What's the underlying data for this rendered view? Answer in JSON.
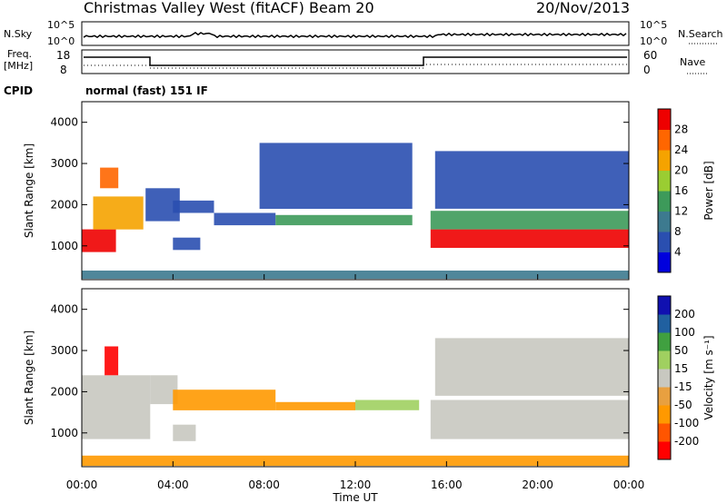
{
  "header": {
    "station": "Christmas Valley West (fitACF)",
    "beam": "Beam 20",
    "date": "20/Nov/2013"
  },
  "panels": {
    "nsky": {
      "left_label": "N.Sky",
      "left_ticks": [
        "10^5",
        "10^0"
      ],
      "right_ticks": [
        "10^5",
        "10^0"
      ],
      "right_label": "N.Search"
    },
    "freq": {
      "left_label_1": "Freq.",
      "left_label_2": "[MHz]",
      "left_ticks": [
        "18",
        "8"
      ],
      "right_ticks": [
        "60",
        "0"
      ],
      "right_label": "Nave"
    },
    "cpid": {
      "label": "CPID",
      "value": "normal (fast) 151 IF"
    }
  },
  "colors": {
    "power_scale": [
      "#0000dd",
      "#2a4fb0",
      "#3d7a8f",
      "#3d9a5a",
      "#9acd32",
      "#f5a300",
      "#ff6600",
      "#ee0000"
    ],
    "velocity_scale": [
      "#ff0000",
      "#ff5500",
      "#ff9900",
      "#e8a040",
      "#c8c8c0",
      "#a0d060",
      "#40a040",
      "#2060a0",
      "#1010b0"
    ]
  },
  "chart_data": [
    {
      "type": "heatmap",
      "name_panel": "power",
      "ylabel": "Slant Range [km]",
      "ylim": [
        180,
        4500
      ],
      "y_ticks": [
        "1000",
        "2000",
        "3000",
        "4000"
      ],
      "xlim": [
        0,
        24
      ],
      "colorbar": {
        "label": "Power [dB]",
        "ticks": [
          "4",
          "8",
          "12",
          "16",
          "20",
          "24",
          "28"
        ],
        "range": [
          0,
          30
        ]
      },
      "regions": [
        {
          "t0": 0.0,
          "t1": 1.5,
          "r0": 850,
          "r1": 1400,
          "value": 28
        },
        {
          "t0": 0.5,
          "t1": 2.7,
          "r0": 1400,
          "r1": 2200,
          "value": 22
        },
        {
          "t0": 0.8,
          "t1": 1.6,
          "r0": 2400,
          "r1": 2900,
          "value": 24
        },
        {
          "t0": 2.8,
          "t1": 4.3,
          "r0": 1600,
          "r1": 2400,
          "value": 6
        },
        {
          "t0": 4.0,
          "t1": 5.8,
          "r0": 1800,
          "r1": 2100,
          "value": 6
        },
        {
          "t0": 4.0,
          "t1": 5.2,
          "r0": 900,
          "r1": 1200,
          "value": 5
        },
        {
          "t0": 5.8,
          "t1": 8.5,
          "r0": 1500,
          "r1": 1800,
          "value": 6
        },
        {
          "t0": 8.5,
          "t1": 14.5,
          "r0": 1500,
          "r1": 1750,
          "value": 14
        },
        {
          "t0": 0.0,
          "t1": 24.0,
          "r0": 200,
          "r1": 400,
          "value": 8
        },
        {
          "t0": 15.3,
          "t1": 24.0,
          "r0": 950,
          "r1": 1400,
          "value": 28
        },
        {
          "t0": 15.3,
          "t1": 24.0,
          "r0": 1400,
          "r1": 1850,
          "value": 12
        },
        {
          "t0": 15.5,
          "t1": 24.0,
          "r0": 1900,
          "r1": 3300,
          "value": 6
        },
        {
          "t0": 7.8,
          "t1": 14.5,
          "r0": 1900,
          "r1": 3500,
          "value": 5
        }
      ]
    },
    {
      "type": "heatmap",
      "name_panel": "velocity",
      "ylabel": "Slant Range [km]",
      "ylim": [
        180,
        4500
      ],
      "y_ticks": [
        "1000",
        "2000",
        "3000",
        "4000"
      ],
      "xlim": [
        0,
        24
      ],
      "x_ticks": [
        "00:00",
        "04:00",
        "08:00",
        "12:00",
        "16:00",
        "20:00",
        "00:00"
      ],
      "xlabel": "Time UT",
      "colorbar": {
        "label": "Velocity [m s⁻¹]",
        "ticks": [
          "-200",
          "-100",
          "-50",
          "-15",
          "15",
          "50",
          "100",
          "200"
        ],
        "range": [
          -250,
          250
        ]
      },
      "regions": [
        {
          "t0": 0.0,
          "t1": 3.0,
          "r0": 850,
          "r1": 2400,
          "value": 0
        },
        {
          "t0": 1.0,
          "t1": 1.6,
          "r0": 2400,
          "r1": 3100,
          "value": -220
        },
        {
          "t0": 3.0,
          "t1": 4.2,
          "r0": 1700,
          "r1": 2400,
          "value": 0
        },
        {
          "t0": 4.0,
          "t1": 8.5,
          "r0": 1550,
          "r1": 2050,
          "value": -70
        },
        {
          "t0": 8.5,
          "t1": 12.0,
          "r0": 1550,
          "r1": 1750,
          "value": -70
        },
        {
          "t0": 12.0,
          "t1": 14.8,
          "r0": 1550,
          "r1": 1800,
          "value": 35
        },
        {
          "t0": 0.0,
          "t1": 24.0,
          "r0": 200,
          "r1": 450,
          "value": -70
        },
        {
          "t0": 15.3,
          "t1": 24.0,
          "r0": 850,
          "r1": 1800,
          "value": 0
        },
        {
          "t0": 15.5,
          "t1": 24.0,
          "r0": 1900,
          "r1": 3300,
          "value": 0
        },
        {
          "t0": 4.0,
          "t1": 5.0,
          "r0": 800,
          "r1": 1200,
          "value": 0
        }
      ]
    }
  ]
}
